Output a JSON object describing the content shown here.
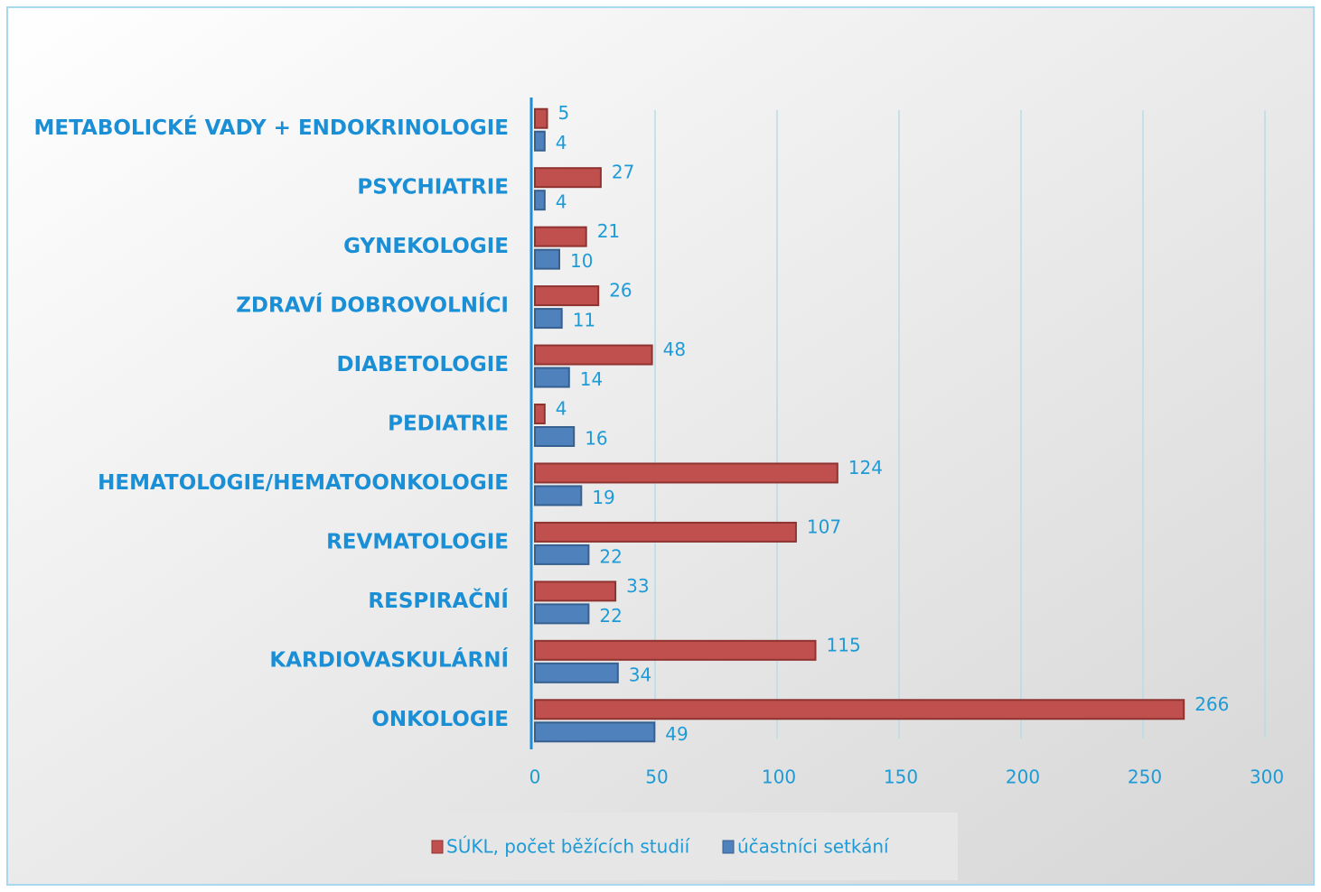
{
  "chart_data": {
    "type": "bar",
    "orientation": "horizontal",
    "categories": [
      "METABOLICKÉ VADY + ENDOKRINOLOGIE",
      "PSYCHIATRIE",
      "GYNEKOLOGIE",
      "ZDRAVÍ DOBROVOLNÍCI",
      "DIABETOLOGIE",
      "PEDIATRIE",
      "HEMATOLOGIE/HEMATOONKOLOGIE",
      "REVMATOLOGIE",
      "RESPIRAČNÍ",
      "KARDIOVASKULÁRNÍ",
      "ONKOLOGIE"
    ],
    "series": [
      {
        "name": "SÚKL, počet běžících studií",
        "color": "#c0504d",
        "values": [
          5,
          27,
          21,
          26,
          48,
          4,
          124,
          107,
          33,
          115,
          266
        ]
      },
      {
        "name": "účastníci setkání",
        "color": "#4f81bd",
        "values": [
          4,
          4,
          10,
          11,
          14,
          16,
          19,
          22,
          22,
          34,
          49
        ]
      }
    ],
    "xlim": [
      0,
      300
    ],
    "xticks": [
      0,
      50,
      100,
      150,
      200,
      250,
      300
    ],
    "grid": true,
    "legend": "bottom"
  }
}
